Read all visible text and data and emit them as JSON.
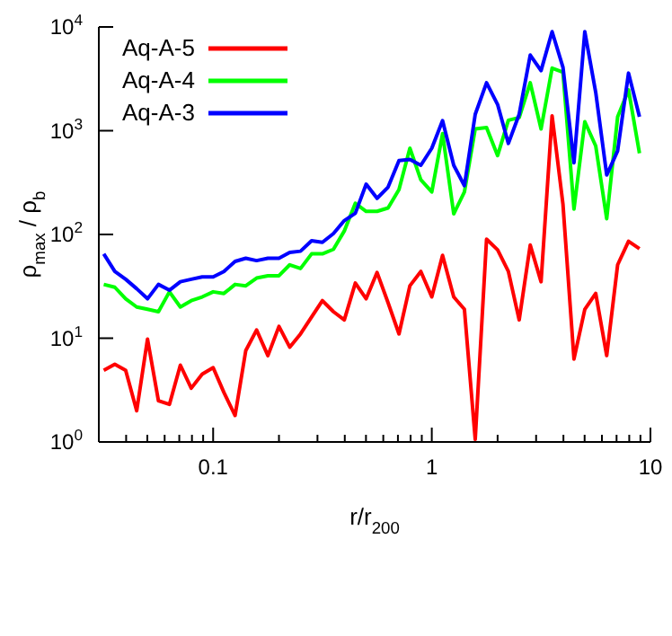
{
  "chart_data": {
    "type": "line",
    "xlabel": "r/r$_{200}$",
    "ylabel": "ρ$_{max}$ / ρ$_{b}$",
    "log": "xy",
    "grid": false,
    "legend": "top left",
    "marker": "none",
    "line_style": "solid",
    "xlim": [
      0.03,
      10
    ],
    "ylim": [
      1,
      10000
    ],
    "xticks": [
      {
        "value": 0.03,
        "label": null
      },
      {
        "value": 0.04,
        "label": null
      },
      {
        "value": 0.05,
        "label": null
      },
      {
        "value": 0.06,
        "label": null
      },
      {
        "value": 0.07,
        "label": null
      },
      {
        "value": 0.08,
        "label": null
      },
      {
        "value": 0.09,
        "label": null
      },
      0.1,
      {
        "value": 0.2,
        "label": null
      },
      {
        "value": 0.3,
        "label": null
      },
      {
        "value": 0.4,
        "label": null
      },
      {
        "value": 0.5,
        "label": null
      },
      {
        "value": 0.6,
        "label": null
      },
      {
        "value": 0.7,
        "label": null
      },
      {
        "value": 0.8,
        "label": null
      },
      {
        "value": 0.9,
        "label": null
      },
      1,
      {
        "value": 2,
        "label": null
      },
      {
        "value": 3,
        "label": null
      },
      {
        "value": 4,
        "label": null
      },
      {
        "value": 5,
        "label": null
      },
      {
        "value": 6,
        "label": null
      },
      {
        "value": 7,
        "label": null
      },
      {
        "value": 8,
        "label": null
      },
      {
        "value": 9,
        "label": null
      },
      10
    ],
    "yticks": [
      {
        "value": 1,
        "label": "10$^{0}$"
      },
      {
        "value": 10,
        "label": "10$^{1}$"
      },
      {
        "value": 100,
        "label": "10$^{2}$"
      },
      {
        "value": 1000,
        "label": "10$^{3}$"
      },
      {
        "value": 10000,
        "label": "10$^{4}$"
      }
    ],
    "x": [
      0.0316,
      0.0355,
      0.0398,
      0.0447,
      0.0501,
      0.0562,
      0.0631,
      0.0708,
      0.0794,
      0.0891,
      0.1,
      0.112,
      0.126,
      0.141,
      0.158,
      0.178,
      0.2,
      0.224,
      0.251,
      0.282,
      0.316,
      0.355,
      0.398,
      0.447,
      0.501,
      0.562,
      0.631,
      0.708,
      0.794,
      0.891,
      1,
      1.12,
      1.26,
      1.41,
      1.58,
      1.78,
      2,
      2.24,
      2.51,
      2.82,
      3.16,
      3.55,
      3.98,
      4.47,
      5.01,
      5.62,
      6.31,
      7.08,
      7.94,
      8.91
    ],
    "series": [
      {
        "name": "Aq-A-5",
        "color": "#ff0000",
        "values": [
          4.9,
          5.6,
          4.9,
          2.0,
          9.8,
          2.5,
          2.3,
          5.5,
          3.3,
          4.5,
          5.2,
          3.0,
          1.8,
          7.6,
          12,
          6.8,
          13,
          8.2,
          11,
          16,
          23,
          18,
          15,
          34,
          24,
          43,
          22,
          11,
          32,
          44,
          25,
          63,
          25,
          19,
          1.06,
          90,
          71,
          44,
          15,
          79,
          35,
          1390,
          196,
          6.3,
          19,
          27,
          6.8,
          51,
          86,
          73
        ]
      },
      {
        "name": "Aq-A-4",
        "color": "#00ff00",
        "values": [
          33,
          31,
          24,
          20,
          19,
          18,
          28,
          20,
          23,
          25,
          28,
          27,
          33,
          32,
          38,
          40,
          40,
          51,
          47,
          65,
          65,
          72,
          108,
          200,
          167,
          167,
          180,
          271,
          678,
          336,
          257,
          936,
          158,
          257,
          1040,
          1070,
          576,
          1260,
          1340,
          2900,
          1040,
          4010,
          3670,
          176,
          1220,
          713,
          142,
          1360,
          2470,
          607
        ]
      },
      {
        "name": "Aq-A-3",
        "color": "#0000ff",
        "values": [
          65,
          44,
          37,
          30,
          24,
          33,
          29,
          35,
          37,
          39,
          39,
          44,
          55,
          59,
          56,
          59,
          59,
          67,
          69,
          87,
          84,
          102,
          136,
          160,
          305,
          223,
          286,
          516,
          528,
          464,
          678,
          1250,
          464,
          295,
          1440,
          2900,
          1790,
          754,
          1440,
          5360,
          3790,
          9000,
          4090,
          491,
          9000,
          2340,
          374,
          641,
          3590,
          1360
        ]
      }
    ]
  }
}
